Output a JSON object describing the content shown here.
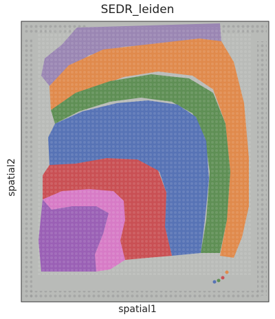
{
  "figure": {
    "title": "SEDR_leiden",
    "xlabel": "spatial1",
    "ylabel": "spatial2"
  },
  "colors": {
    "background_tissue": "#b9bbb8",
    "frame": "#333333",
    "clusters": {
      "orange": "#e08a4c",
      "green": "#5f8f55",
      "blue": "#5773b5",
      "red": "#c95054",
      "pink": "#d77bc6",
      "purple": "#9a60b5",
      "lavender": "#9a86b3"
    }
  }
}
